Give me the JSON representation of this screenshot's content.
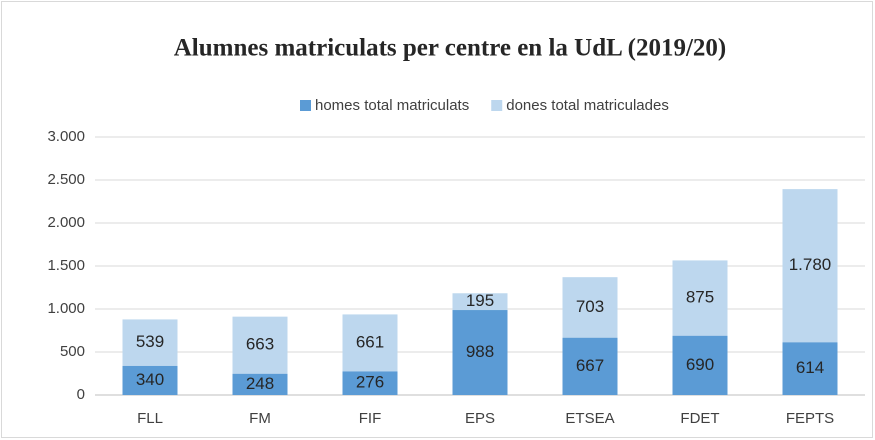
{
  "chart_data": {
    "type": "stacked_bar",
    "title": "Alumnes matriculats per centre en la UdL (2019/20)",
    "categories": [
      "FLL",
      "FM",
      "FIF",
      "EPS",
      "ETSEA",
      "FDET",
      "FEPTS"
    ],
    "series": [
      {
        "name": "homes total matriculats",
        "color": "#5b9bd5",
        "values": [
          340,
          248,
          276,
          988,
          667,
          690,
          614
        ]
      },
      {
        "name": "dones total matriculades",
        "color": "#bdd7ee",
        "values": [
          539,
          663,
          661,
          195,
          703,
          875,
          1780
        ],
        "value_labels": [
          "539",
          "663",
          "661",
          "195",
          "703",
          "875",
          "1.780"
        ]
      }
    ],
    "ylim": [
      0,
      3000
    ],
    "yticks": [
      0,
      500,
      {
        "value": 1000,
        "label": "1.000"
      },
      {
        "value": 1500,
        "label": "1.500"
      },
      {
        "value": 2000,
        "label": "2.000"
      },
      {
        "value": 2500,
        "label": "2.500"
      },
      {
        "value": 3000,
        "label": "3.000"
      }
    ],
    "grid": true,
    "legend": "top"
  }
}
